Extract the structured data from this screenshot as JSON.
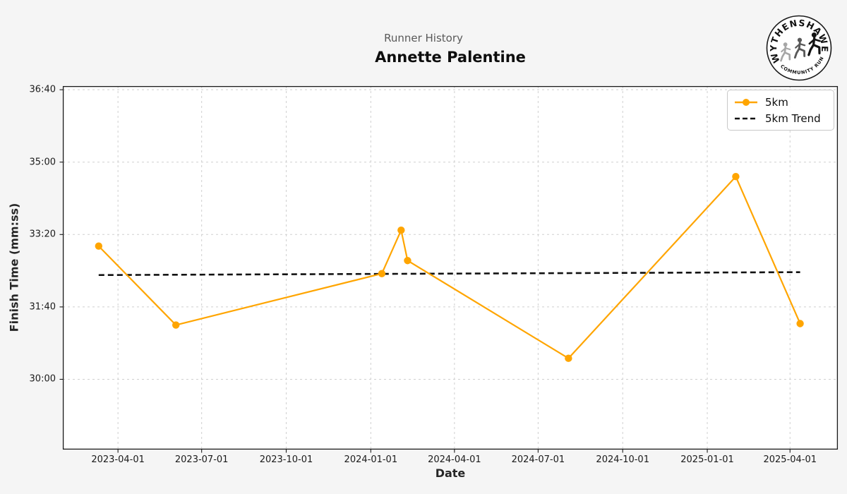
{
  "header": {
    "suptitle": "Runner History",
    "title": "Annette Palentine"
  },
  "logo": {
    "top_text": "WYTHENSHAWE",
    "bottom_text": "COMMUNITY RUN",
    "runner_colors": [
      "#a6a6a6",
      "#595959",
      "#141414"
    ]
  },
  "chart_data": {
    "type": "line",
    "title": "Annette Palentine",
    "suptitle": "Runner History",
    "xlabel": "Date",
    "ylabel": "Finish Time (mm:ss)",
    "grid": true,
    "legend_position": "upper right",
    "x_ticks": [
      "2023-04-01",
      "2023-07-01",
      "2023-10-01",
      "2024-01-01",
      "2024-04-01",
      "2024-07-01",
      "2024-10-01",
      "2025-01-01",
      "2025-04-01"
    ],
    "y_ticks": [
      "36:40",
      "35:00",
      "33:20",
      "31:40",
      "30:00"
    ],
    "xlim": [
      "2023-01-31",
      "2025-05-23"
    ],
    "ylim": [
      "28:23",
      "36:45"
    ],
    "colors": {
      "line": "#FFA500",
      "trend": "#111111",
      "grid": "#cfcfcf",
      "frame": "#1a1a1a",
      "page_bg": "#f5f5f5",
      "plot_bg": "#ffffff"
    },
    "series": [
      {
        "name": "5km",
        "type": "line+markers",
        "color": "#FFA500",
        "points": [
          {
            "date": "2023-03-11",
            "time": "33:04"
          },
          {
            "date": "2023-06-03",
            "time": "31:15"
          },
          {
            "date": "2024-01-13",
            "time": "32:26"
          },
          {
            "date": "2024-02-03",
            "time": "33:26"
          },
          {
            "date": "2024-02-10",
            "time": "32:44"
          },
          {
            "date": "2024-08-03",
            "time": "30:29"
          },
          {
            "date": "2025-02-01",
            "time": "34:40"
          },
          {
            "date": "2025-04-12",
            "time": "31:17"
          }
        ]
      },
      {
        "name": "5km Trend",
        "type": "dashed-line",
        "color": "#111111",
        "points": [
          {
            "date": "2023-03-11",
            "time": "32:24"
          },
          {
            "date": "2025-04-12",
            "time": "32:28"
          }
        ]
      }
    ]
  }
}
